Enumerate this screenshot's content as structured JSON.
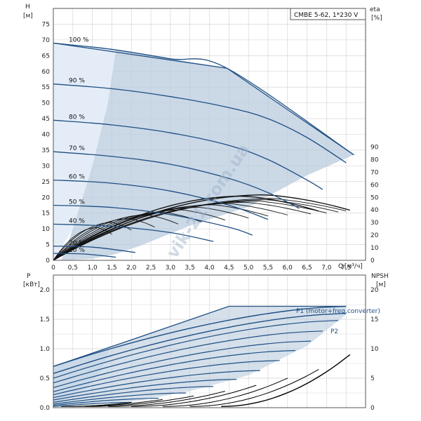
{
  "colors": {
    "envelope": "#b9cbde",
    "envelope_light": "#e4edf7",
    "curve": "#1f4f83",
    "eff": "#111111",
    "grid": "#cfcfcf",
    "frame": "#555555"
  },
  "watermark": "vik-21.com.ua",
  "chart_data": [
    {
      "type": "line",
      "title": "CMBE 5-62, 1*230 V",
      "ylabel": "H",
      "yunit": "[м]",
      "y2label": "eta",
      "y2unit": "[%]",
      "xlabel": "Q",
      "xunit": "[м³/ч]",
      "xlim": [
        0,
        8.0
      ],
      "ylim": [
        0,
        80
      ],
      "y2lim": [
        0,
        100
      ],
      "xticks": [
        0,
        0.5,
        1.0,
        1.5,
        2.0,
        2.5,
        3.0,
        3.5,
        4.0,
        4.5,
        5.0,
        5.5,
        6.0,
        6.5,
        7.0,
        7.5
      ],
      "xtick_labels": [
        "0",
        "0,5",
        "1,0",
        "1,5",
        "2,0",
        "2,5",
        "3,0",
        "3,5",
        "4,0",
        "4,5",
        "5,0",
        "5,5",
        "6,0",
        "6,5",
        "7,0",
        "7,5"
      ],
      "yticks": [
        0,
        5,
        10,
        15,
        20,
        25,
        30,
        35,
        40,
        45,
        50,
        55,
        60,
        65,
        70,
        75
      ],
      "y2ticks": [
        0,
        10,
        20,
        30,
        40,
        50,
        60,
        70,
        80,
        90
      ],
      "grid": true,
      "series": [
        {
          "name": "100 %",
          "x": [
            0,
            1.5,
            3.0,
            4.45,
            7.7
          ],
          "y": [
            69,
            67,
            64,
            61,
            33.5
          ]
        },
        {
          "name": "90 %",
          "x": [
            0,
            1.5,
            3.0,
            4.5,
            5.5,
            6.5,
            7.5
          ],
          "y": [
            56,
            54.5,
            52,
            48.5,
            45,
            39,
            31
          ]
        },
        {
          "name": "80 %",
          "x": [
            0,
            1.5,
            3.0,
            4.5,
            5.5,
            6.5,
            6.9
          ],
          "y": [
            44.5,
            43,
            40.5,
            36.5,
            32,
            25.5,
            22.5
          ]
        },
        {
          "name": "70 %",
          "x": [
            0,
            1.5,
            3.0,
            4.5,
            5.5,
            6.3
          ],
          "y": [
            34.5,
            33,
            30.5,
            26,
            21.5,
            16.5
          ]
        },
        {
          "name": "60 %",
          "x": [
            0,
            1.5,
            3.0,
            4.5,
            5.5
          ],
          "y": [
            25.5,
            24.5,
            22,
            17.5,
            13
          ]
        },
        {
          "name": "50 %",
          "x": [
            0,
            1.5,
            3.0,
            4.5,
            5.1
          ],
          "y": [
            17.5,
            16.8,
            14.5,
            10.5,
            8
          ]
        },
        {
          "name": "40 %",
          "x": [
            0,
            1.5,
            3.0,
            4.1
          ],
          "y": [
            11.5,
            10.8,
            8.8,
            6
          ]
        },
        {
          "name": "20 %",
          "x": [
            0,
            1.0,
            2.1
          ],
          "y": [
            4.5,
            4.2,
            2.5
          ]
        },
        {
          "name": "10 %",
          "x": [
            0,
            0.8,
            1.6
          ],
          "y": [
            2.2,
            2.0,
            1.0
          ]
        }
      ]
    },
    {
      "type": "line",
      "ylabel": "P",
      "yunit": "[кВт]",
      "y2label": "NPSH",
      "y2unit": "[м]",
      "xlim": [
        0,
        8.0
      ],
      "ylim": [
        0,
        2.25
      ],
      "y2lim": [
        0,
        22.5
      ],
      "yticks": [
        0,
        0.5,
        1.0,
        1.5,
        2.0
      ],
      "ytick_labels": [
        "0.0",
        "0.5",
        "1.0",
        "1.5",
        "2.0"
      ],
      "y2ticks": [
        0,
        5,
        10,
        15,
        20
      ],
      "grid": true,
      "annotations": [
        "P1 (motor+freq.converter)",
        "P2"
      ],
      "series": [
        {
          "name": "P1 (motor+freq.converter)",
          "x": [
            0,
            2.0,
            4.5,
            7.5
          ],
          "y": [
            0.7,
            1.15,
            1.72,
            1.72
          ]
        },
        {
          "name": "P2",
          "x": [
            0,
            2.0,
            4.5,
            7.5
          ],
          "y": [
            0.55,
            0.95,
            1.48,
            1.6
          ]
        },
        {
          "name": "NPSH",
          "x": [
            4.5,
            5.5,
            6.5,
            7.5
          ],
          "y2": [
            2.2,
            3.5,
            5.8,
            9
          ]
        }
      ]
    }
  ]
}
